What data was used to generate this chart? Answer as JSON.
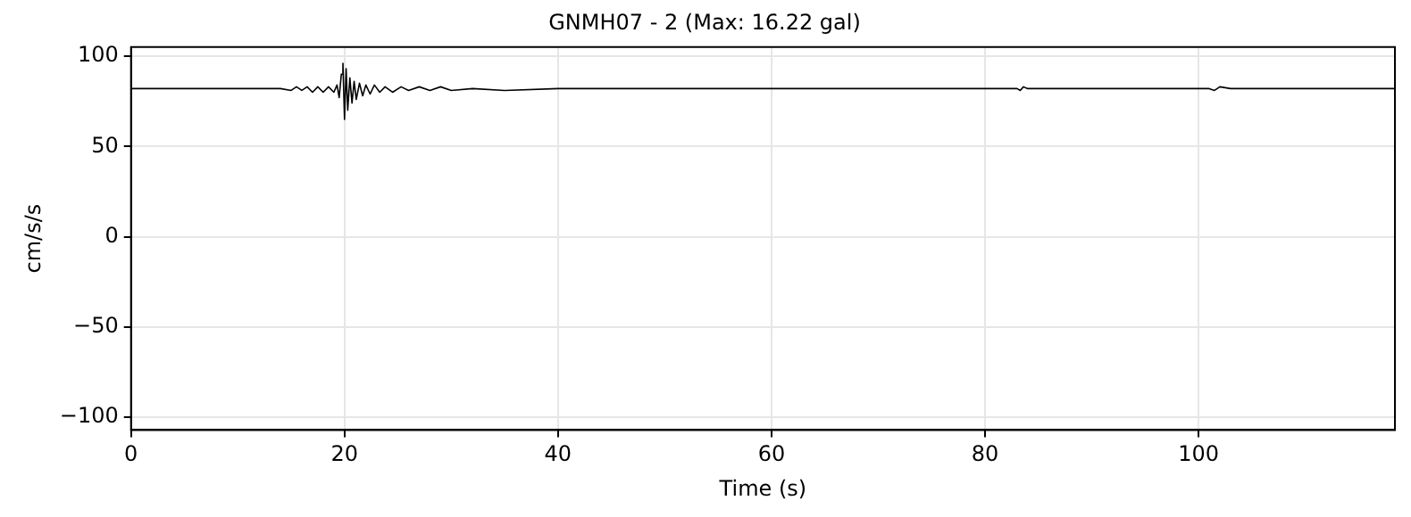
{
  "chart_data": {
    "type": "line",
    "title": "GNMH07 - 2 (Max: 16.22 gal)",
    "xlabel": "Time (s)",
    "ylabel": "cm/s/s",
    "series": [
      {
        "color": "#000000",
        "x": [
          0,
          14,
          15,
          15.5,
          16,
          16.5,
          17,
          17.5,
          18,
          18.5,
          19,
          19.3,
          19.5,
          19.7,
          19.85,
          20,
          20.15,
          20.3,
          20.5,
          20.7,
          20.9,
          21.1,
          21.4,
          21.7,
          22,
          22.4,
          22.8,
          23.3,
          23.8,
          24.5,
          25.3,
          26,
          27,
          28,
          29,
          30,
          32,
          35,
          40,
          50,
          83,
          83.3,
          83.6,
          84,
          101,
          101.5,
          102,
          103,
          118.4
        ],
        "values": [
          82,
          82,
          81,
          83,
          81,
          83,
          80,
          83,
          80,
          83,
          80,
          84,
          77,
          90,
          96,
          65,
          93,
          70,
          88,
          74,
          86,
          76,
          85,
          78,
          84,
          79,
          84,
          80,
          83,
          80,
          83,
          81,
          83,
          81,
          83,
          81,
          82,
          81,
          82,
          82,
          82,
          81,
          83,
          82,
          82,
          81,
          83,
          82,
          82
        ]
      }
    ],
    "xlim": [
      0,
      118.4
    ],
    "xticks": [
      0,
      20,
      40,
      60,
      80,
      100
    ],
    "ylim": [
      -107,
      105
    ],
    "yticks": [
      -100,
      -50,
      0,
      50,
      100
    ],
    "grid": true,
    "legend": false,
    "marker": "none",
    "line_style": "solid"
  }
}
